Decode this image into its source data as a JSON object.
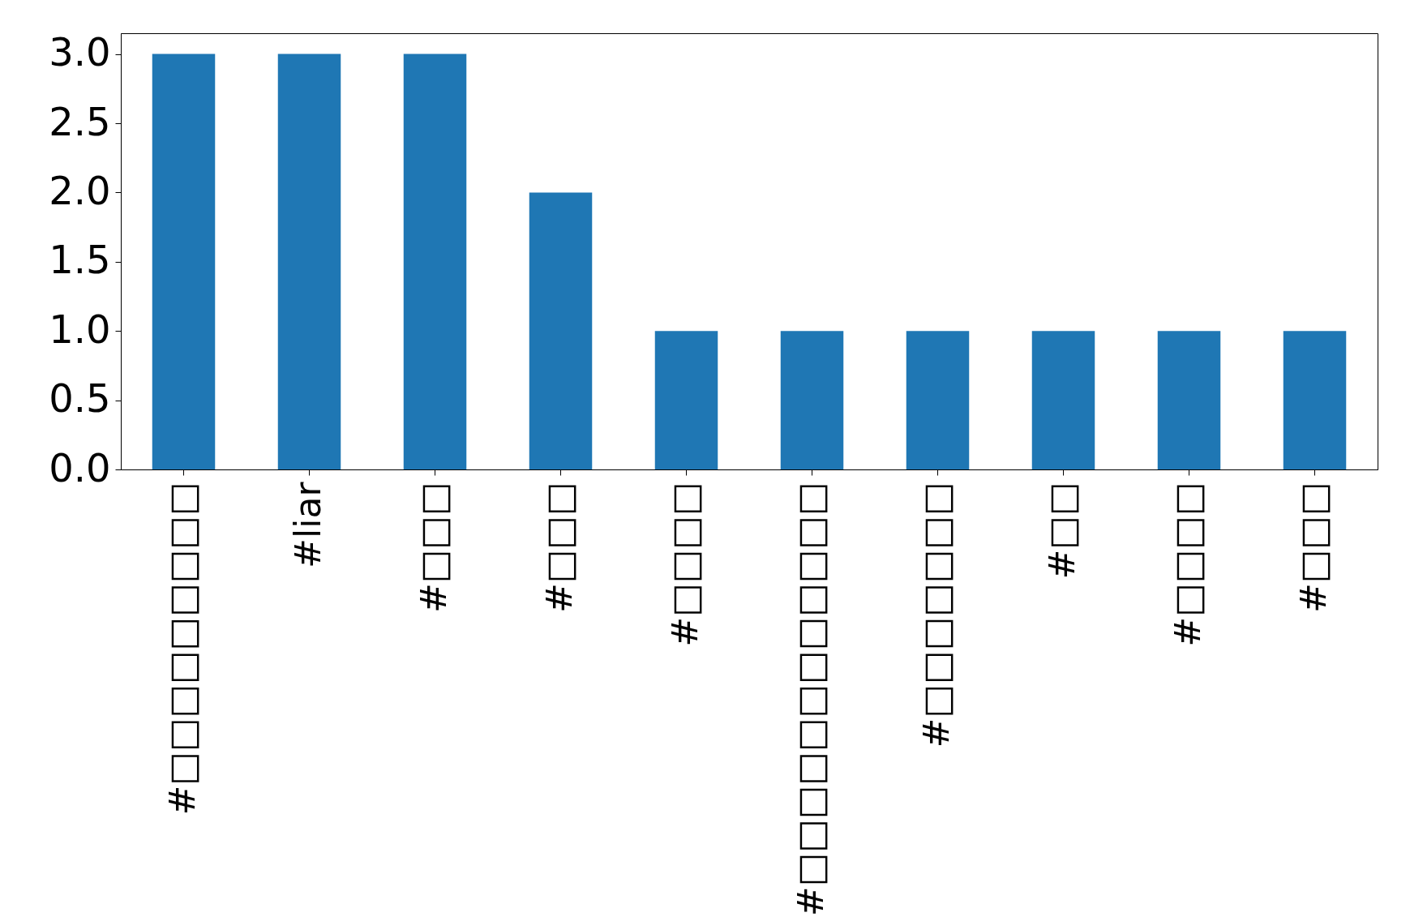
{
  "chart_data": {
    "type": "bar",
    "categories": [
      "#□□□□□□□□□",
      "#liar",
      "#□□□",
      "#□□□",
      "#□□□□",
      "#□□□□□□□□□□□□",
      "#□□□□□□□",
      "#□□",
      "#□□□□",
      "#□□□"
    ],
    "values": [
      3,
      3,
      3,
      2,
      1,
      1,
      1,
      1,
      1,
      1
    ],
    "color": "#1f77b4",
    "ylim": [
      0,
      3.15
    ],
    "yticks": [
      {
        "value": 0,
        "label": "0.0"
      },
      0.5,
      {
        "value": 1,
        "label": "1.0"
      },
      1.5,
      {
        "value": 2,
        "label": "2.0"
      },
      2.5,
      {
        "value": 3,
        "label": "3.0"
      }
    ],
    "grid": false
  }
}
